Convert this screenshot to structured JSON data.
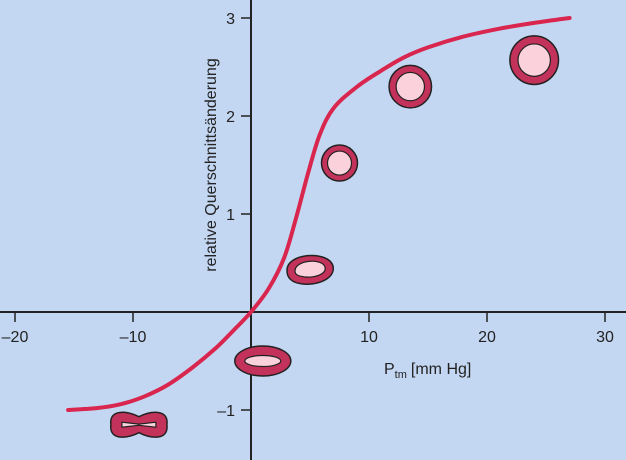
{
  "chart_data": {
    "type": "line",
    "xlabel": {
      "main": "P",
      "sub": "tm",
      "unit": "[mm Hg]"
    },
    "ylabel": "relative Querschnittsänderung",
    "xlim": [
      -20,
      30
    ],
    "ylim": [
      -1,
      3
    ],
    "x_ticks": [
      -20,
      -10,
      10,
      20,
      30
    ],
    "y_ticks": [
      -1,
      1,
      2,
      3
    ],
    "x_tick_labels": [
      "–20",
      "–10",
      "10",
      "20",
      "30"
    ],
    "y_tick_labels": [
      "–1",
      "1",
      "2",
      "3"
    ],
    "series": [
      {
        "x": [
          -15.5,
          -13,
          -11,
          -9,
          -7,
          -5,
          -3,
          -1.5,
          0,
          1.5,
          2.8,
          3.8,
          4.8,
          5.8,
          7,
          9,
          11,
          13,
          15,
          18,
          21,
          24,
          27
        ],
        "y": [
          -1.0,
          -0.98,
          -0.94,
          -0.86,
          -0.74,
          -0.57,
          -0.37,
          -0.19,
          0.0,
          0.24,
          0.55,
          0.95,
          1.4,
          1.8,
          2.08,
          2.3,
          2.46,
          2.6,
          2.7,
          2.81,
          2.89,
          2.95,
          3.0
        ],
        "color": "#d9264e"
      }
    ],
    "vessel_icons": [
      {
        "shape": "collapsed",
        "x": -9.5,
        "y": -1.15
      },
      {
        "shape": "flat-ellipse",
        "x": 1.0,
        "y": -0.5
      },
      {
        "shape": "oval",
        "x": 5.0,
        "y": 0.44
      },
      {
        "shape": "circle",
        "x": 7.5,
        "y": 1.52,
        "size": 1.0
      },
      {
        "shape": "circle",
        "x": 13.5,
        "y": 2.3,
        "size": 1.18
      },
      {
        "shape": "circle",
        "x": 24.0,
        "y": 2.57,
        "size": 1.35
      }
    ],
    "colors": {
      "background": "#c4d7f2",
      "curve": "#d9264e",
      "vessel_wall": "#c2325a",
      "vessel_lumen": "#fbd2dc",
      "outline": "#222222"
    }
  }
}
